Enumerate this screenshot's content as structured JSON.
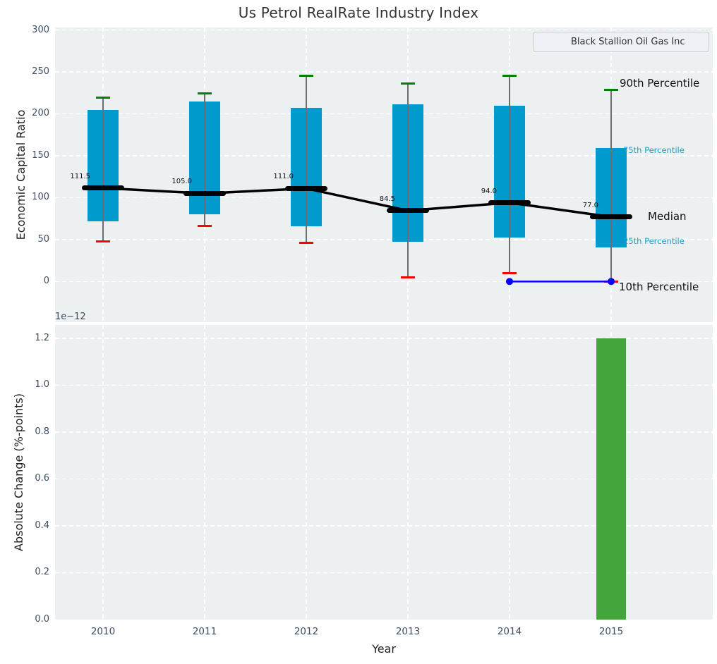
{
  "title": "Us Petrol RealRate Industry Index",
  "legend": {
    "label": "Black Stallion Oil Gas Inc"
  },
  "right_annotations": {
    "p90": "90th Percentile",
    "p75": "75th Percentile",
    "median": "Median",
    "p25": "25th Percentile",
    "p10": "10th Percentile"
  },
  "colors": {
    "box_fill": "#009bcd",
    "cap_top": "#008000",
    "cap_bottom": "#ff0000",
    "whisker": "#6e6e6e",
    "median_line": "#000000",
    "company_line": "#0000ff",
    "bar_fill": "#43a53c",
    "axes_bg": "#edf0f1",
    "grid": "#ffffff",
    "tick_text": "#3d4c63",
    "percentile_label_small": "#1b9ccb"
  },
  "chart_data": [
    {
      "type": "box",
      "title": "Us Petrol RealRate Industry Index",
      "ylabel": "Economic Capital Ratio",
      "categories": [
        "2010",
        "2011",
        "2012",
        "2013",
        "2014",
        "2015"
      ],
      "ylim": [
        -48.5,
        303
      ],
      "yticks": [
        0,
        50,
        100,
        150,
        200,
        250,
        300
      ],
      "grid": true,
      "legend_position": "upper right",
      "percentiles": {
        "p90": [
          219,
          224,
          245,
          236,
          245,
          229
        ],
        "p75": [
          205,
          215,
          207,
          211,
          210,
          159
        ],
        "median": [
          111.5,
          105.0,
          111.0,
          84.5,
          94.0,
          77.0
        ],
        "p25": [
          72,
          80,
          66,
          47,
          52,
          41
        ],
        "p10": [
          48,
          66,
          46,
          5,
          10,
          0
        ]
      },
      "median_labels": [
        "111.5",
        "105.0",
        "111.0",
        "84.5",
        "94.0",
        "77.0"
      ],
      "series": [
        {
          "name": "Black Stallion Oil Gas Inc",
          "x": [
            "2014",
            "2015"
          ],
          "values": [
            0,
            0
          ]
        }
      ]
    },
    {
      "type": "bar",
      "xlabel": "Year",
      "ylabel": "Absolute Change (%-points)",
      "offset_text": "1e−12",
      "categories": [
        "2010",
        "2011",
        "2012",
        "2013",
        "2014",
        "2015"
      ],
      "values": [
        0,
        0,
        0,
        0,
        0,
        1.2e-12
      ],
      "values_display": [
        0,
        0,
        0,
        0,
        0,
        1.2
      ],
      "yticks": [
        "0.0",
        "0.2",
        "0.4",
        "0.6",
        "0.8",
        "1.0",
        "1.2"
      ],
      "ylim_display": [
        0,
        1.257
      ],
      "grid": true
    }
  ]
}
